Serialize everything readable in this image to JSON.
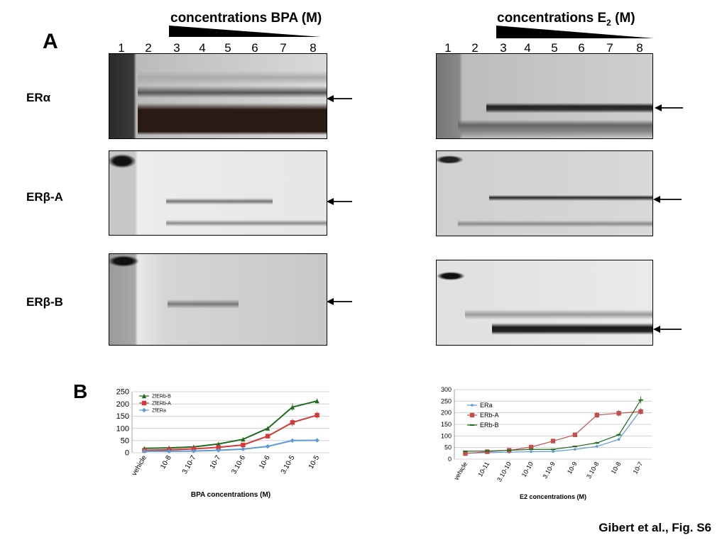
{
  "panel_a": {
    "label": "A",
    "bpa_title": "concentrations BPA (M)",
    "e2_title_prefix": "concentrations E",
    "e2_title_sub": "2",
    "e2_title_suffix": " (M)",
    "lanes": [
      "1",
      "2",
      "3",
      "4",
      "5",
      "6",
      "7",
      "8"
    ],
    "rows": [
      "ERα",
      "ERβ-A",
      "ERβ-B"
    ]
  },
  "panel_b": {
    "label": "B"
  },
  "chart_data": [
    {
      "type": "line",
      "title": "",
      "xlabel": "BPA concentrations (M)",
      "ylabel": "",
      "ylim": [
        0,
        250
      ],
      "yticks": [
        "0",
        "50",
        "100",
        "150",
        "200",
        "250"
      ],
      "categories": [
        "vehicle",
        "10-8",
        "3.10-7",
        "10-7",
        "3.10-6",
        "10-6",
        "3.10-5",
        "10-5"
      ],
      "legend_position": "top-left",
      "series": [
        {
          "name": "ZfERb-B",
          "color": "#1e6b1e",
          "marker": "triangle",
          "values": [
            18,
            20,
            24,
            36,
            55,
            100,
            187,
            212
          ],
          "errors": [
            3,
            3,
            3,
            3,
            4,
            8,
            16,
            10
          ]
        },
        {
          "name": "ZfERb-A",
          "color": "#d23a3a",
          "marker": "square",
          "values": [
            10,
            12,
            16,
            22,
            32,
            68,
            124,
            154
          ],
          "errors": [
            2,
            2,
            2,
            3,
            3,
            6,
            16,
            14
          ]
        },
        {
          "name": "ZfERa",
          "color": "#5b9bd5",
          "marker": "diamond",
          "values": [
            6,
            6,
            7,
            10,
            15,
            26,
            50,
            51
          ],
          "errors": [
            1,
            1,
            1,
            2,
            2,
            3,
            5,
            5
          ]
        }
      ]
    },
    {
      "type": "line",
      "title": "",
      "xlabel": "E2 concentrations (M)",
      "ylabel": "",
      "ylim": [
        0,
        300
      ],
      "yticks": [
        "0",
        "50",
        "100",
        "150",
        "200",
        "250",
        "300"
      ],
      "categories": [
        "vehicle",
        "10-11",
        "3.10-10",
        "10-10",
        "3.10-9",
        "10-9",
        "3.10-8",
        "10-8",
        "10-7"
      ],
      "legend_position": "top-left",
      "series": [
        {
          "name": "ERa",
          "color": "#5b9bd5",
          "marker": "dot",
          "values": [
            26,
            28,
            30,
            32,
            33,
            42,
            55,
            85,
            212
          ],
          "errors": [
            2,
            2,
            2,
            2,
            2,
            3,
            4,
            5,
            8
          ]
        },
        {
          "name": "ERb-A",
          "color": "#c0504d",
          "marker": "square",
          "values": [
            24,
            32,
            38,
            52,
            78,
            105,
            190,
            198,
            205
          ],
          "errors": [
            2,
            2,
            3,
            3,
            4,
            5,
            12,
            14,
            12
          ]
        },
        {
          "name": "ERb-B",
          "color": "#1e6b1e",
          "marker": "dash",
          "values": [
            34,
            35,
            38,
            42,
            42,
            55,
            70,
            105,
            255
          ],
          "errors": [
            2,
            2,
            2,
            2,
            3,
            3,
            5,
            6,
            15
          ]
        }
      ]
    }
  ],
  "credit": "Gibert et al., Fig. S6"
}
